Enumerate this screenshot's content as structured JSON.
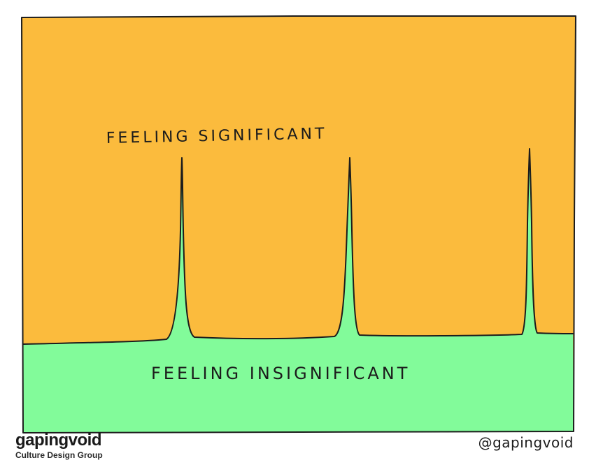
{
  "cartoon": {
    "label_top": "FEELING SIGNIFICANT",
    "label_bottom": "FEELING INSIGNIFICANT",
    "colors": {
      "significant_area": "#fbbb3d",
      "insignificant_area": "#82fb9a",
      "ink": "#1c1c1c"
    }
  },
  "footer": {
    "brand": "gapingvoid",
    "tagline": "Culture Design Group",
    "handle": "@gapingvoid"
  }
}
